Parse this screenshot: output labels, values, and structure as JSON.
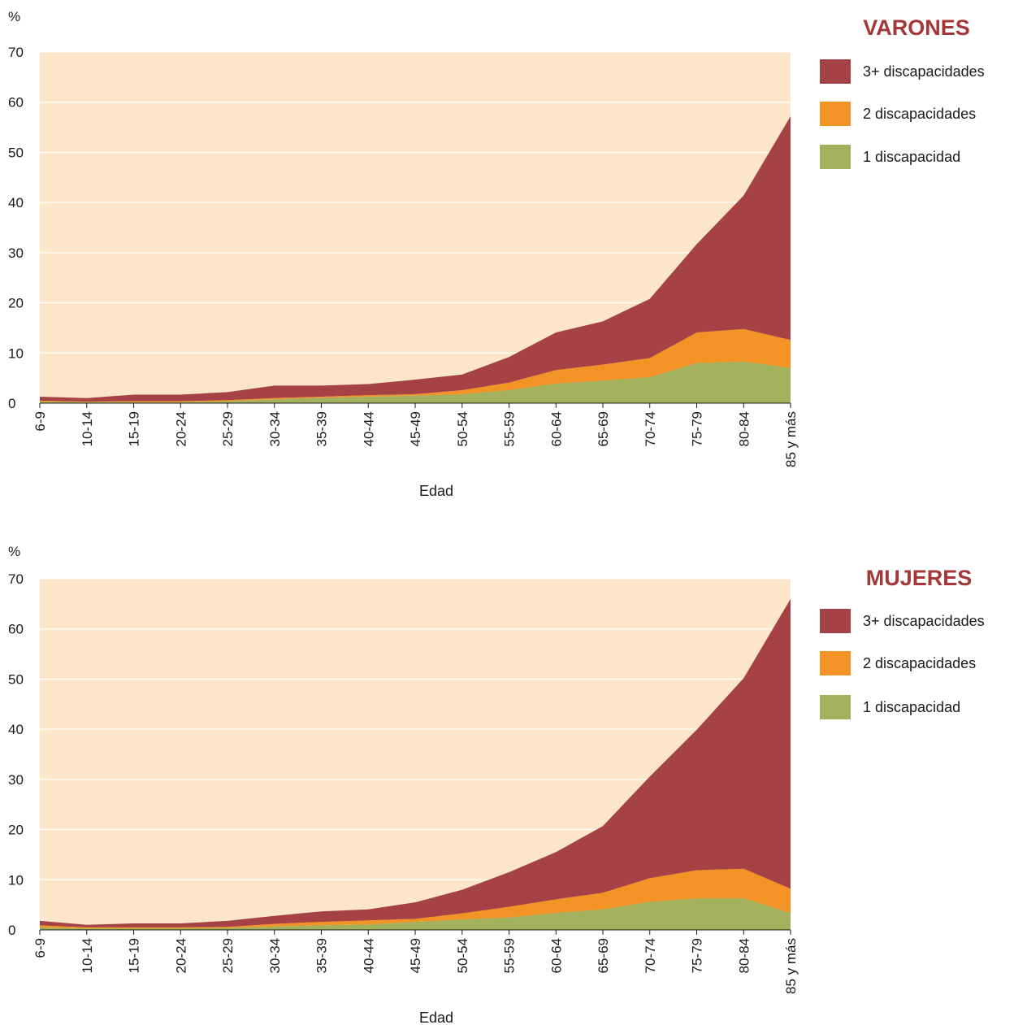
{
  "colors": {
    "background": "#fce5c8",
    "gridline": "#ffffff",
    "title": "#a4373a",
    "one": "#a3b05c",
    "two": "#f39325",
    "three": "#a54245"
  },
  "chart_data": [
    {
      "type": "area",
      "stacked": true,
      "title": "VARONES",
      "ylabel": "%",
      "xlabel": "Edad",
      "ylim": [
        0,
        70
      ],
      "yticks": [
        0,
        10,
        20,
        30,
        40,
        50,
        60,
        70
      ],
      "grid": true,
      "legend_position": "right",
      "categories": [
        "6-9",
        "10-14",
        "15-19",
        "20-24",
        "25-29",
        "30-34",
        "35-39",
        "40-44",
        "45-49",
        "50-54",
        "55-59",
        "60-64",
        "65-69",
        "70-74",
        "75-79",
        "80-84",
        "85 y más"
      ],
      "series": [
        {
          "name": "1 discapacidad",
          "color": "#a3b05c",
          "values": [
            0.3,
            0.2,
            0.2,
            0.2,
            0.4,
            0.8,
            1.1,
            1.3,
            1.5,
            1.8,
            2.6,
            3.9,
            4.5,
            5.2,
            8.0,
            8.3,
            7.0
          ]
        },
        {
          "name": "2 discapacidades",
          "color": "#f39325",
          "values": [
            0.2,
            0.1,
            0.2,
            0.2,
            0.2,
            0.2,
            0.2,
            0.3,
            0.3,
            0.8,
            1.5,
            2.7,
            3.2,
            3.8,
            6.1,
            6.5,
            5.6
          ]
        },
        {
          "name": "3+ discapacidades",
          "color": "#a54245",
          "values": [
            0.8,
            0.7,
            1.3,
            1.3,
            1.6,
            2.5,
            2.2,
            2.2,
            2.9,
            3.1,
            5.1,
            7.5,
            8.6,
            11.8,
            17.6,
            26.6,
            44.6
          ]
        }
      ]
    },
    {
      "type": "area",
      "stacked": true,
      "title": "MUJERES",
      "ylabel": "%",
      "xlabel": "Edad",
      "ylim": [
        0,
        70
      ],
      "yticks": [
        0,
        10,
        20,
        30,
        40,
        50,
        60,
        70
      ],
      "grid": true,
      "legend_position": "right",
      "categories": [
        "6-9",
        "10-14",
        "15-19",
        "20-24",
        "25-29",
        "30-34",
        "35-39",
        "40-44",
        "45-49",
        "50-54",
        "55-59",
        "60-64",
        "65-69",
        "70-74",
        "75-79",
        "80-84",
        "85 y más"
      ],
      "series": [
        {
          "name": "1 discapacidad",
          "color": "#a3b05c",
          "values": [
            0.5,
            0.3,
            0.3,
            0.3,
            0.4,
            0.7,
            0.9,
            1.1,
            1.6,
            2.1,
            2.5,
            3.4,
            4.1,
            5.6,
            6.3,
            6.3,
            3.4
          ]
        },
        {
          "name": "2 discapacidades",
          "color": "#f39325",
          "values": [
            0.4,
            0.2,
            0.2,
            0.2,
            0.2,
            0.5,
            0.7,
            0.8,
            0.6,
            1.2,
            2.1,
            2.7,
            3.3,
            4.7,
            5.6,
            5.9,
            4.8
          ]
        },
        {
          "name": "3+ discapacidades",
          "color": "#a54245",
          "values": [
            0.9,
            0.5,
            0.8,
            0.8,
            1.2,
            1.6,
            2.1,
            2.2,
            3.3,
            4.7,
            6.9,
            9.4,
            13.3,
            20.3,
            28.0,
            38.0,
            57.8
          ]
        }
      ]
    }
  ]
}
